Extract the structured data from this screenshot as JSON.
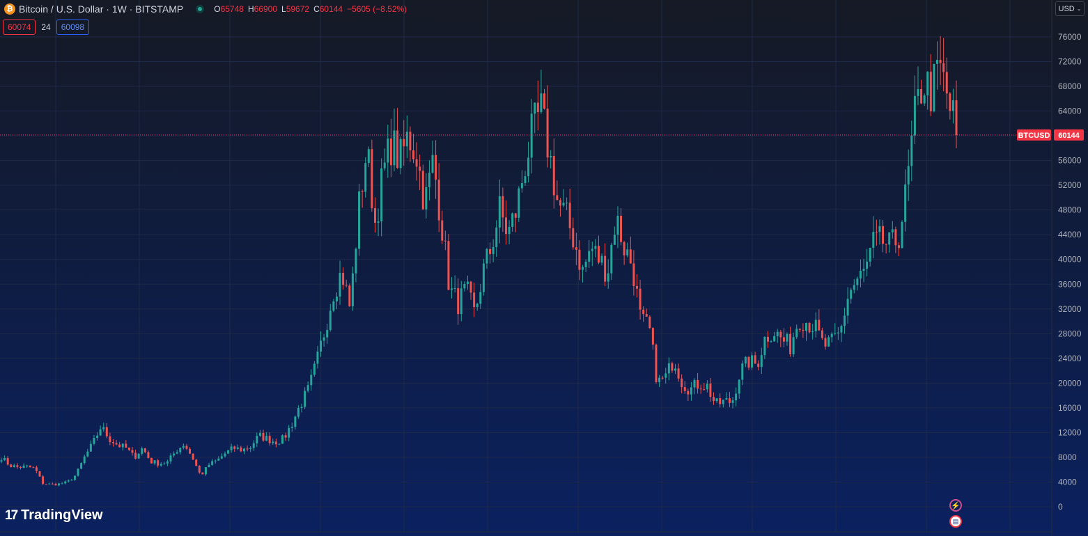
{
  "header": {
    "title": "Bitcoin / U.S. Dollar · 1W · BITSTAMP",
    "ohlc": {
      "o_label": "O",
      "o": "65748",
      "h_label": "H",
      "h": "66900",
      "l_label": "L",
      "l": "59672",
      "c_label": "C",
      "c": "60144",
      "change": "−5605 (−8.52%)"
    }
  },
  "trade_boxes": {
    "sell": "60074",
    "spread": "24",
    "buy": "60098"
  },
  "currency_button": "USD",
  "logo": "TradingView",
  "icons": {
    "coin": "bitcoin-icon",
    "flash": "lightning-icon",
    "flag": "us-flag-icon"
  },
  "colors": {
    "up": "#26a69a",
    "down": "#ef5350",
    "last": "#f23645",
    "grid": "#1e2a47"
  },
  "chart_data": {
    "type": "candlestick",
    "symbol": "BTCUSD",
    "last_price": 60144,
    "last_price_label": "60144",
    "ylim": [
      0,
      78000
    ],
    "yticks": [
      0,
      4000,
      8000,
      12000,
      16000,
      20000,
      24000,
      28000,
      32000,
      36000,
      40000,
      44000,
      48000,
      52000,
      56000,
      60000,
      64000,
      68000,
      72000,
      76000
    ],
    "ytick_labels": [
      "0",
      "4000",
      "8000",
      "12000",
      "16000",
      "20000",
      "24000",
      "28000",
      "32000",
      "36000",
      "40000",
      "44000",
      "48000",
      "52000",
      "56000",
      "64000",
      "68000",
      "72000",
      "76000"
    ],
    "close_path": [
      8000,
      6700,
      6400,
      6500,
      6200,
      3800,
      3600,
      3700,
      4000,
      5200,
      8000,
      10200,
      13000,
      11000,
      10000,
      9500,
      8000,
      9500,
      7300,
      7000,
      7200,
      9000,
      10200,
      8000,
      5000,
      6800,
      7500,
      8700,
      9500,
      9200,
      9700,
      11500,
      11000,
      10500,
      11000,
      13500,
      16500,
      19000,
      23500,
      29000,
      35000,
      38000,
      32000,
      48000,
      58000,
      46000,
      54000,
      59000,
      56000,
      60000,
      57000,
      49000,
      56000,
      46000,
      35000,
      33000,
      35000,
      31000,
      38000,
      42000,
      48000,
      44000,
      48000,
      55000,
      61000,
      64000,
      57000,
      49000,
      47000,
      43000,
      38000,
      42000,
      40000,
      38000,
      47000,
      42000,
      39000,
      30000,
      29000,
      20000,
      21000,
      24000,
      20000,
      19000,
      20000,
      19500,
      16500,
      17000,
      17000,
      22000,
      23500,
      23000,
      27500,
      28500,
      27000,
      26000,
      30500,
      30000,
      29000,
      26000,
      26500,
      28000,
      34500,
      36500,
      38000,
      42500,
      43000,
      42000,
      43500,
      51000,
      63000,
      69000,
      67000,
      71000,
      65748,
      60144
    ],
    "candle_count": 300
  },
  "caption": "BTCUSD"
}
